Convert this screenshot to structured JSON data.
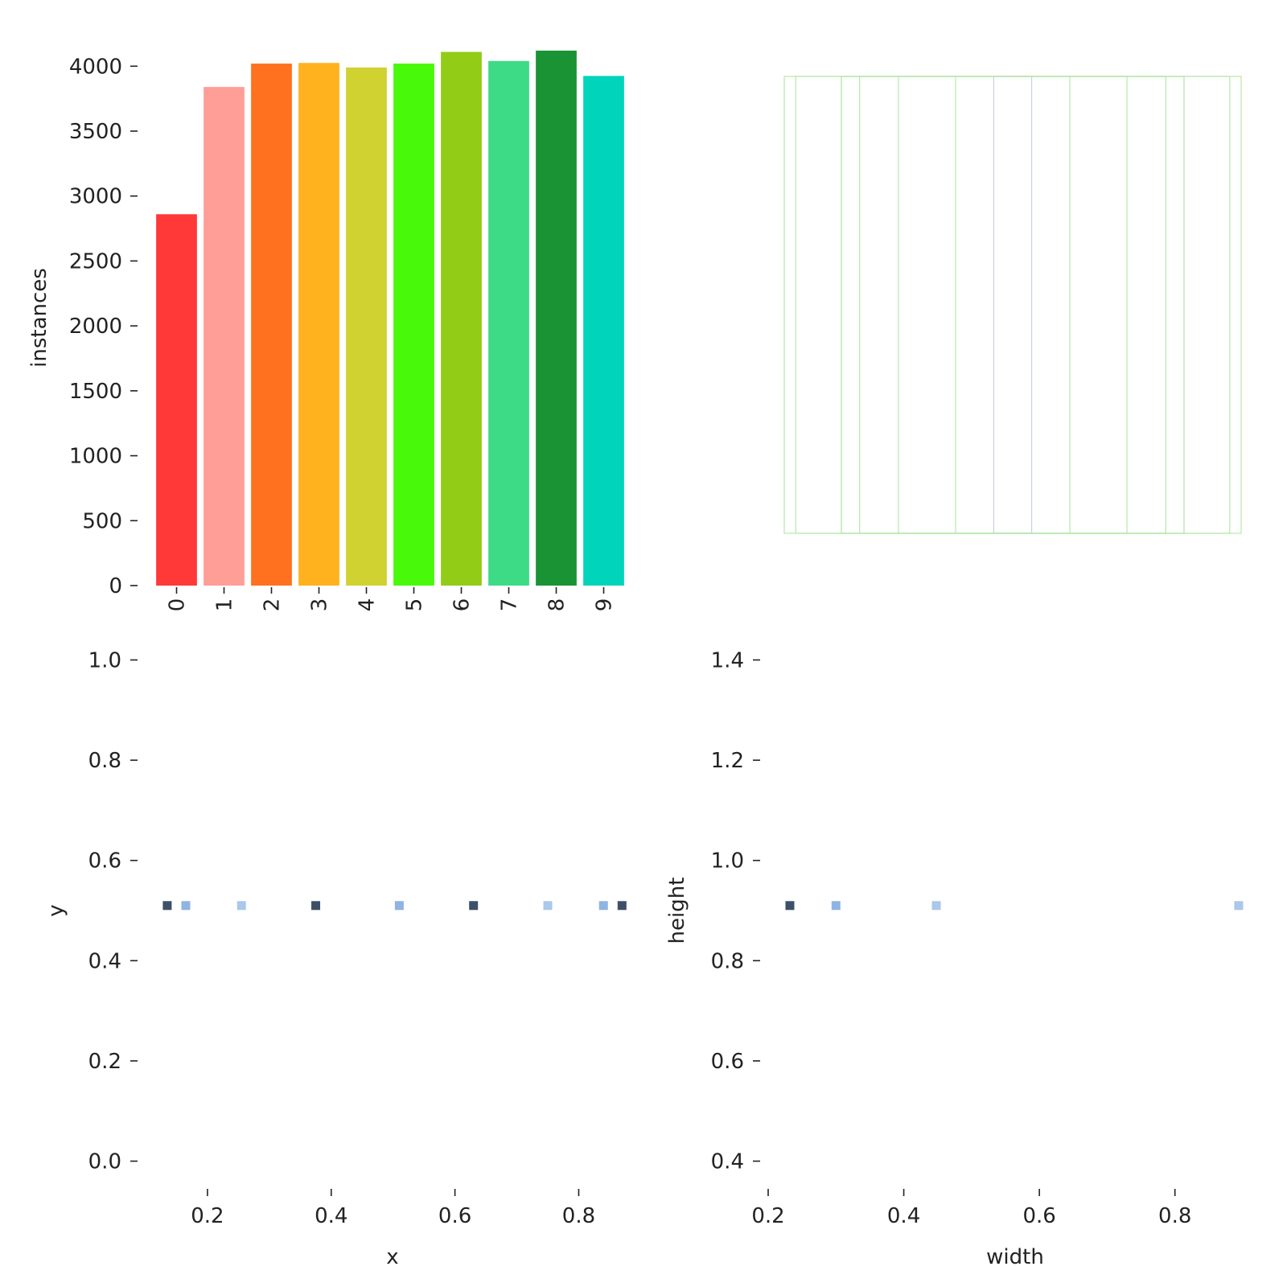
{
  "chart_data": [
    {
      "type": "bar",
      "categories": [
        "0",
        "1",
        "2",
        "3",
        "4",
        "5",
        "6",
        "7",
        "8",
        "9"
      ],
      "values": [
        2860,
        3840,
        4020,
        4025,
        3990,
        4020,
        4110,
        4040,
        4120,
        3925
      ],
      "colors": [
        "#ff3838",
        "#ff9d97",
        "#ff701f",
        "#ffb21d",
        "#cfd231",
        "#48f90a",
        "#92cc17",
        "#3ddb86",
        "#1a9334",
        "#00d4bb"
      ],
      "ylabel": "instances",
      "xlabel": "",
      "ylim": [
        0,
        4200
      ],
      "yticks": [
        0,
        500,
        1000,
        1500,
        2000,
        2500,
        3000,
        3500,
        4000
      ],
      "grid": false
    },
    {
      "type": "box-overlay",
      "box_color": "#b4e8a8",
      "center_color": "#c9cfe8",
      "boxes_width": [
        1.0,
        0.67,
        0.75,
        0.95,
        0.25,
        0.75,
        0.083,
        0.5
      ],
      "boxes_height": [
        1.0,
        1.0,
        1.0,
        1.0,
        1.0,
        1.0,
        1.0,
        1.0
      ]
    },
    {
      "type": "heatmap",
      "xlabel": "x",
      "ylabel": "y",
      "xlim": [
        0.1,
        0.88
      ],
      "ylim": [
        -0.02,
        1.02
      ],
      "xticks": [
        0.2,
        0.4,
        0.6,
        0.8
      ],
      "yticks": [
        0.0,
        0.2,
        0.4,
        0.6,
        0.8,
        1.0
      ],
      "cells": [
        {
          "x": 0.135,
          "y": 0.51,
          "shade": "dark"
        },
        {
          "x": 0.165,
          "y": 0.51,
          "shade": "mid"
        },
        {
          "x": 0.255,
          "y": 0.51,
          "shade": "light"
        },
        {
          "x": 0.375,
          "y": 0.51,
          "shade": "dark"
        },
        {
          "x": 0.51,
          "y": 0.51,
          "shade": "mid"
        },
        {
          "x": 0.63,
          "y": 0.51,
          "shade": "dark"
        },
        {
          "x": 0.75,
          "y": 0.51,
          "shade": "light"
        },
        {
          "x": 0.84,
          "y": 0.51,
          "shade": "mid"
        },
        {
          "x": 0.87,
          "y": 0.51,
          "shade": "dark"
        }
      ],
      "shades": {
        "dark": "#3d5068",
        "mid": "#8fb4e3",
        "light": "#a9c8ea"
      }
    },
    {
      "type": "heatmap",
      "xlabel": "width",
      "ylabel": "height",
      "xlim": [
        0.2,
        0.9
      ],
      "ylim": [
        0.38,
        1.42
      ],
      "xticks": [
        0.2,
        0.4,
        0.6,
        0.8
      ],
      "yticks": [
        0.4,
        0.6,
        0.8,
        1.0,
        1.2,
        1.4
      ],
      "cells": [
        {
          "x": 0.232,
          "y": 0.91,
          "shade": "dark"
        },
        {
          "x": 0.3,
          "y": 0.91,
          "shade": "mid"
        },
        {
          "x": 0.448,
          "y": 0.91,
          "shade": "light"
        },
        {
          "x": 0.894,
          "y": 0.91,
          "shade": "light"
        }
      ],
      "shades": {
        "dark": "#3d5068",
        "mid": "#8fb4e3",
        "light": "#a9c8ea"
      }
    }
  ]
}
